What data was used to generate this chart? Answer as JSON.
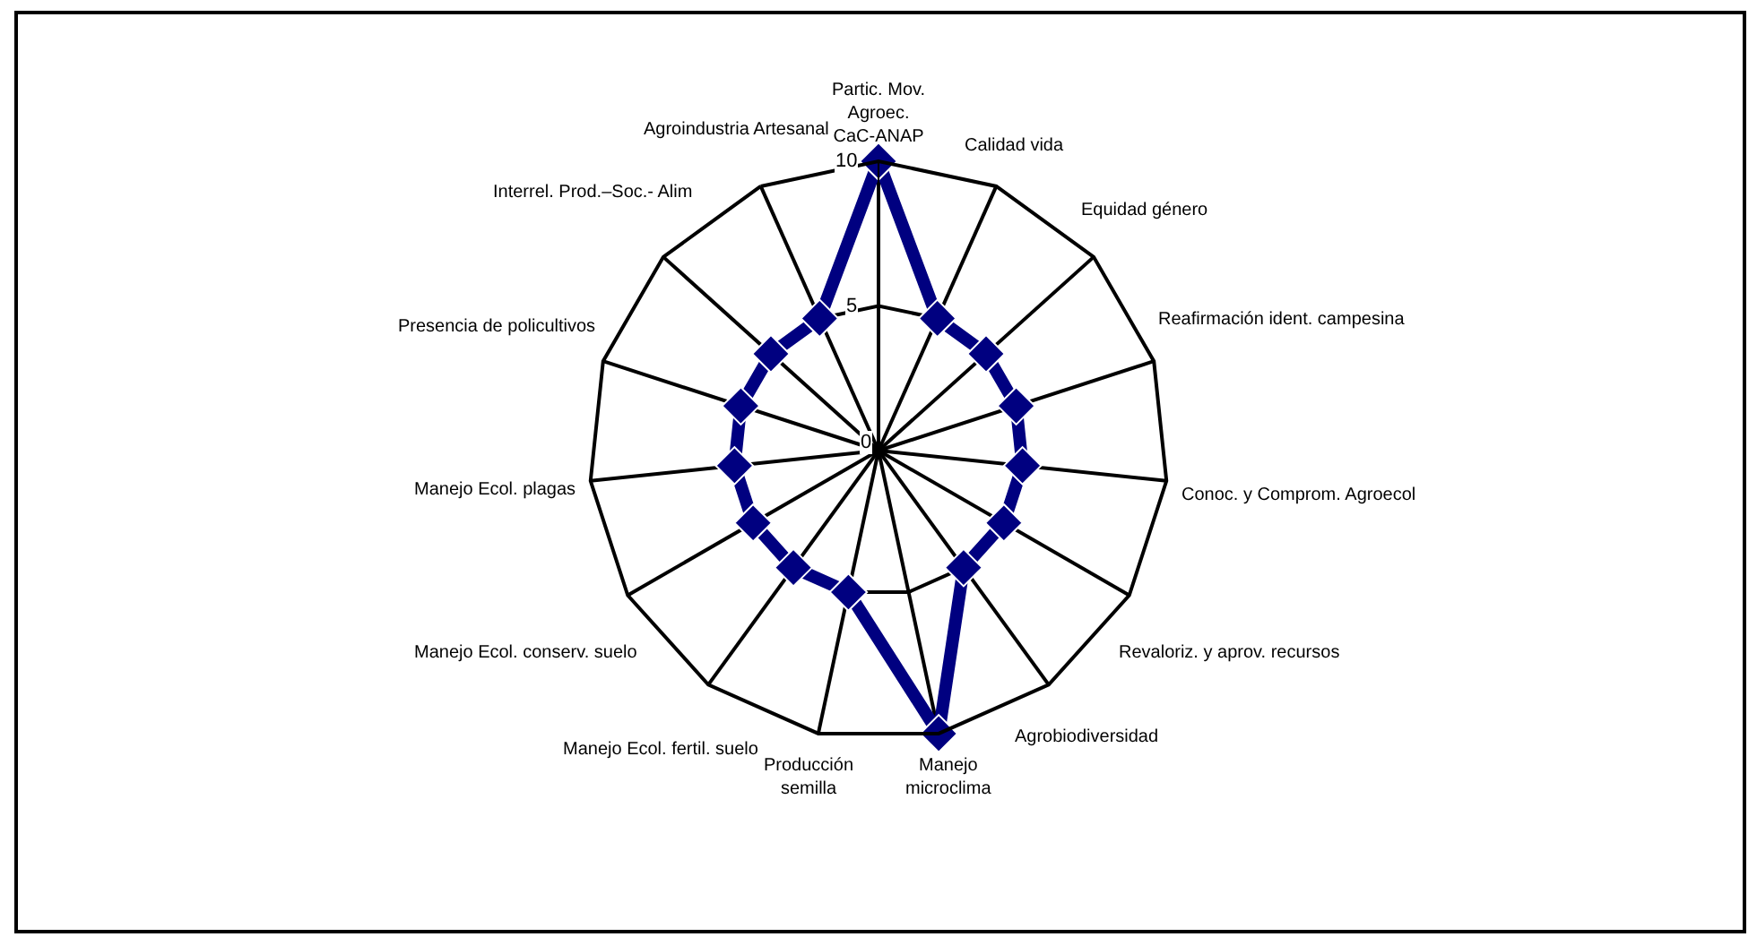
{
  "chart_data": {
    "type": "radar",
    "categories": [
      "Partic. Mov. Agroec. CaC-ANAP",
      "Calidad vida",
      "Equidad género",
      "Reafirmación ident. campesina",
      "Conoc. y Comprom. Agroecol",
      "Revaloriz. y aprov. recursos",
      "Agrobiodiversidad",
      "Manejo microclima",
      "Producción semilla",
      "Manejo Ecol. fertil. suelo",
      "Manejo Ecol. conserv. suelo",
      "Manejo Ecol. plagas",
      "Presencia de policultivos",
      "Interrel. Prod.–Soc.- Alim",
      "Agroindustria Artesanal"
    ],
    "series": [
      {
        "color": "#000080",
        "values": [
          10,
          5,
          5,
          5,
          5,
          5,
          5,
          10,
          5,
          5,
          5,
          5,
          5,
          5,
          5
        ]
      }
    ],
    "ylim": [
      0,
      10
    ],
    "yticks": [
      0,
      5,
      10
    ],
    "grid": true,
    "marker": "diamond",
    "line_style": "solid"
  }
}
